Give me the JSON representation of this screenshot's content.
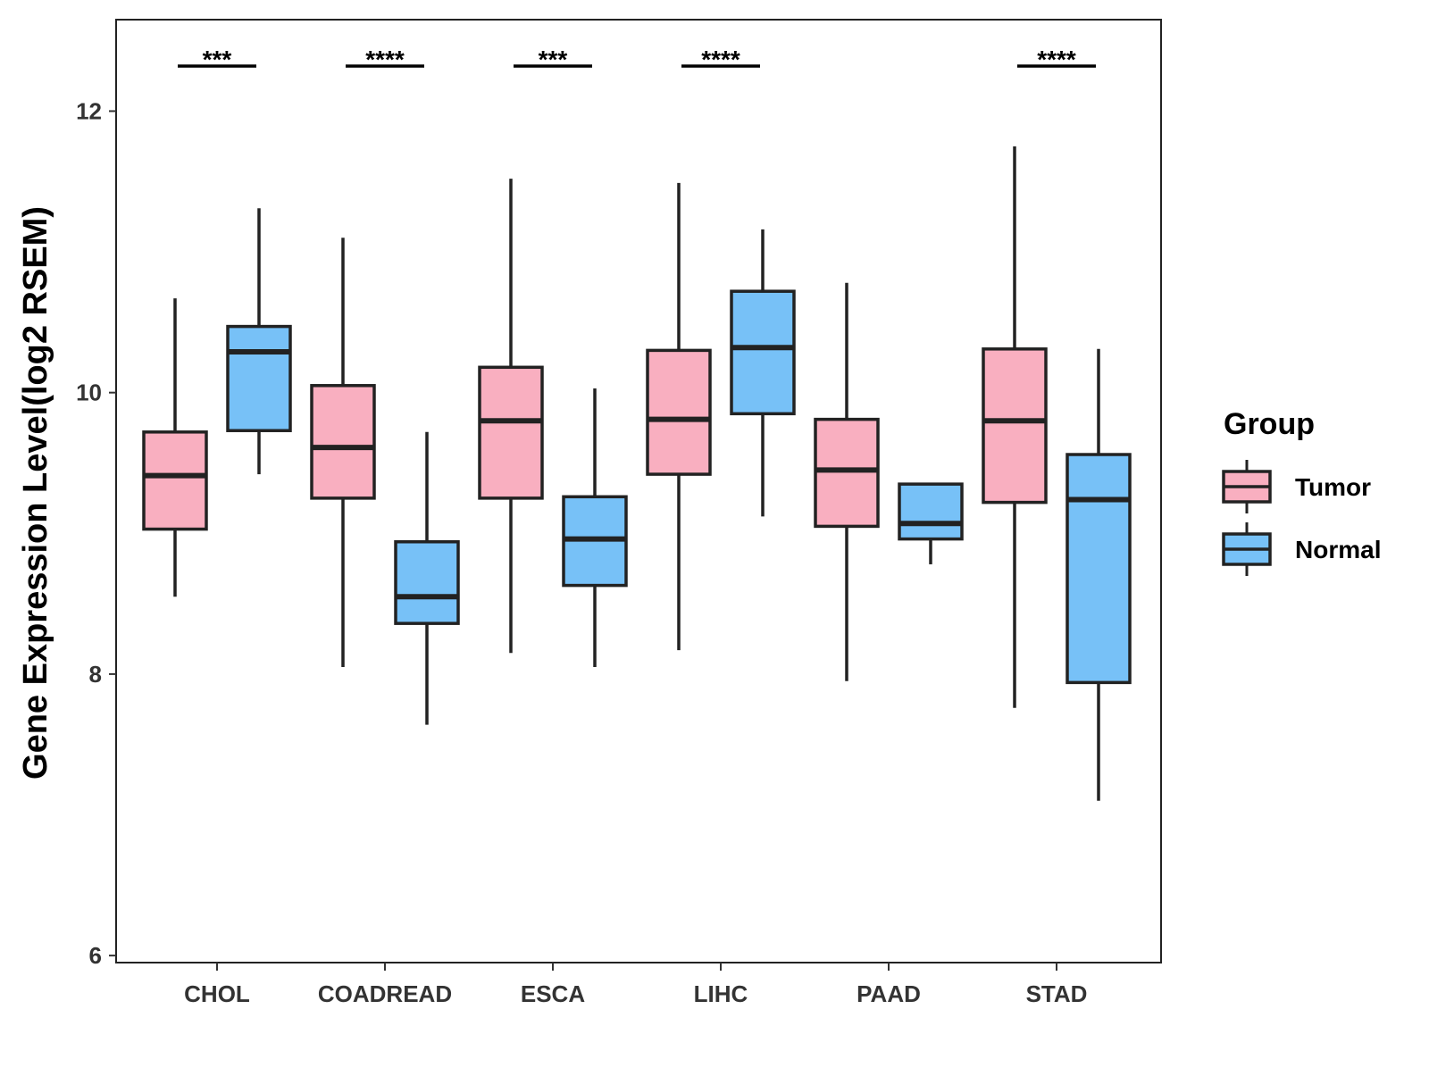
{
  "chart_data": {
    "type": "boxplot",
    "title": "",
    "xlabel": "",
    "ylabel": "Gene Expression Level(log2 RSEM)",
    "ylim": [
      5.95,
      12.65
    ],
    "yticks": [
      6,
      8,
      10,
      12
    ],
    "ytick_labels": [
      "6",
      "8",
      "10",
      "12"
    ],
    "grid": false,
    "categories": [
      "CHOL",
      "COADREAD",
      "ESCA",
      "LIHC",
      "PAAD",
      "STAD"
    ],
    "legend": {
      "title": "Group",
      "position": "right",
      "entries": [
        "Tumor",
        "Normal"
      ]
    },
    "series": [
      {
        "name": "Tumor",
        "color": "#F9AFC0",
        "boxes": [
          {
            "category": "CHOL",
            "min": 8.55,
            "q1": 9.03,
            "median": 9.41,
            "q3": 9.72,
            "max": 10.67
          },
          {
            "category": "COADREAD",
            "min": 8.05,
            "q1": 9.25,
            "median": 9.61,
            "q3": 10.05,
            "max": 11.1
          },
          {
            "category": "ESCA",
            "min": 8.15,
            "q1": 9.25,
            "median": 9.8,
            "q3": 10.18,
            "max": 11.52
          },
          {
            "category": "LIHC",
            "min": 8.17,
            "q1": 9.42,
            "median": 9.81,
            "q3": 10.3,
            "max": 11.49
          },
          {
            "category": "PAAD",
            "min": 7.95,
            "q1": 9.05,
            "median": 9.45,
            "q3": 9.81,
            "max": 10.78
          },
          {
            "category": "STAD",
            "min": 7.76,
            "q1": 9.22,
            "median": 9.8,
            "q3": 10.31,
            "max": 11.75
          }
        ]
      },
      {
        "name": "Normal",
        "color": "#77C1F7",
        "boxes": [
          {
            "category": "CHOL",
            "min": 9.42,
            "q1": 9.73,
            "median": 10.29,
            "q3": 10.47,
            "max": 11.31
          },
          {
            "category": "COADREAD",
            "min": 7.64,
            "q1": 8.36,
            "median": 8.55,
            "q3": 8.94,
            "max": 9.72
          },
          {
            "category": "ESCA",
            "min": 8.05,
            "q1": 8.63,
            "median": 8.96,
            "q3": 9.26,
            "max": 10.03
          },
          {
            "category": "LIHC",
            "min": 9.12,
            "q1": 9.85,
            "median": 10.32,
            "q3": 10.72,
            "max": 11.16
          },
          {
            "category": "PAAD",
            "min": 8.78,
            "q1": 8.96,
            "median": 9.07,
            "q3": 9.35,
            "max": 9.35
          },
          {
            "category": "STAD",
            "min": 7.1,
            "q1": 7.94,
            "median": 9.24,
            "q3": 9.56,
            "max": 10.31
          }
        ]
      }
    ],
    "significance": [
      {
        "category": "CHOL",
        "label": "***"
      },
      {
        "category": "COADREAD",
        "label": "****"
      },
      {
        "category": "ESCA",
        "label": "***"
      },
      {
        "category": "LIHC",
        "label": "****"
      },
      {
        "category": "PAAD",
        "label": ""
      },
      {
        "category": "STAD",
        "label": "****"
      }
    ]
  }
}
